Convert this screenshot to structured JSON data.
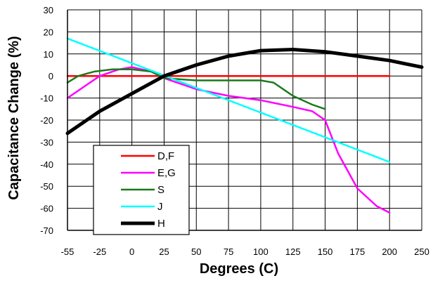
{
  "chart_data": {
    "type": "line",
    "xlabel": "Degrees (C)",
    "ylabel": "Capacitance Change (%)",
    "xlim": [
      -55,
      250
    ],
    "ylim": [
      -70,
      30
    ],
    "x_ticks": [
      -55,
      -25,
      0,
      25,
      50,
      75,
      100,
      125,
      150,
      175,
      200,
      250
    ],
    "y_ticks": [
      30,
      20,
      10,
      0,
      -10,
      -20,
      -30,
      -40,
      -50,
      -60,
      -70
    ],
    "grid": true,
    "legend_position": "bottom-left",
    "series": [
      {
        "name": "D,F",
        "color": "#ff0000",
        "x": [
          -55,
          200
        ],
        "y": [
          0,
          0
        ]
      },
      {
        "name": "E,G",
        "color": "#ff00ff",
        "x": [
          -55,
          -40,
          -25,
          -10,
          0,
          15,
          25,
          50,
          75,
          100,
          125,
          140,
          150,
          160,
          175,
          190,
          200
        ],
        "y": [
          -10,
          -5,
          0,
          3,
          4,
          2,
          -1,
          -6,
          -9,
          -11,
          -14,
          -16,
          -20,
          -35,
          -51,
          -59,
          -62
        ]
      },
      {
        "name": "S",
        "color": "#1a7a1a",
        "x": [
          -55,
          -45,
          -30,
          -15,
          0,
          15,
          25,
          50,
          75,
          100,
          110,
          125,
          140,
          150
        ],
        "y": [
          -3,
          0,
          2,
          3,
          3,
          2,
          -1,
          -2,
          -2,
          -2,
          -3,
          -9,
          -13,
          -15
        ]
      },
      {
        "name": "J",
        "color": "#00ffff",
        "x": [
          -55,
          200
        ],
        "y": [
          17,
          -39
        ]
      },
      {
        "name": "H",
        "color": "#000000",
        "x": [
          -55,
          -25,
          0,
          25,
          50,
          75,
          100,
          125,
          150,
          175,
          200,
          225,
          250
        ],
        "y": [
          -26,
          -16,
          -8,
          0,
          5,
          9,
          11.5,
          12,
          11,
          9,
          7,
          5.5,
          4
        ]
      }
    ]
  }
}
